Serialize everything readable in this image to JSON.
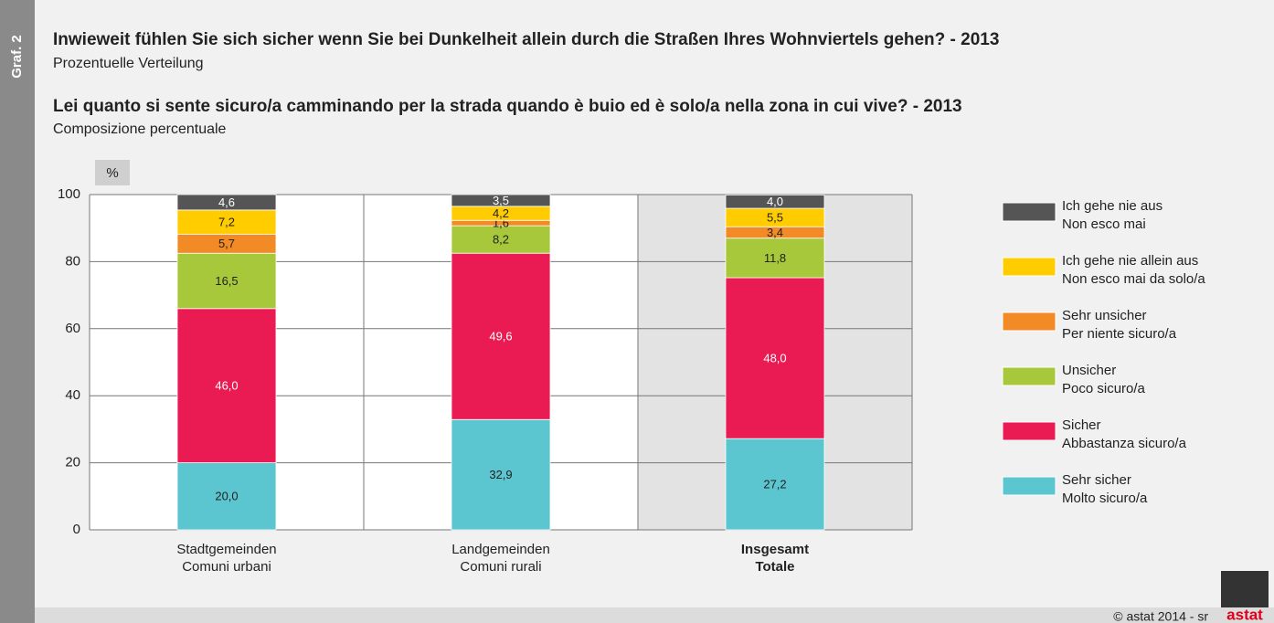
{
  "side_label": "Graf. 2",
  "chart_data": {
    "type": "stacked_bar",
    "title": "Inwieweit fühlen Sie sich sicher wenn Sie bei Dunkelheit allein durch die Straßen Ihres Wohnviertels gehen? - 2013",
    "subtitle": "Prozentuelle Verteilung",
    "title_it": "Lei quanto si sente sicuro/a camminando per la strada quando è buio ed è solo/a nella zona in cui vive? - 2013",
    "subtitle_it": "Composizione percentuale",
    "y_unit": "%",
    "categories": [
      [
        "Stadtgemeinden",
        "Comuni urbani"
      ],
      [
        "Landgemeinden",
        "Comuni rurali"
      ],
      [
        "Insgesamt",
        "Totale"
      ]
    ],
    "highlight_category": 2,
    "ylim": [
      0,
      100
    ],
    "yticks": [
      0,
      20,
      40,
      60,
      80,
      100
    ],
    "grid": true,
    "series": [
      {
        "name": [
          "Sehr sicher",
          "Molto sicuro/a"
        ],
        "color": "#5bc6d0",
        "label_color": "#222",
        "values": [
          20.0,
          32.9,
          27.2
        ],
        "value_labels": [
          "20,0",
          "32,9",
          "27,2"
        ]
      },
      {
        "name": [
          "Sicher",
          "Abbastanza sicuro/a"
        ],
        "color": "#ea1a52",
        "label_color": "#fff",
        "values": [
          46.0,
          49.6,
          48.0
        ],
        "value_labels": [
          "46,0",
          "49,6",
          "48,0"
        ]
      },
      {
        "name": [
          "Unsicher",
          "Poco sicuro/a"
        ],
        "color": "#a7c83a",
        "label_color": "#222",
        "values": [
          16.5,
          8.2,
          11.8
        ],
        "value_labels": [
          "16,5",
          "8,2",
          "11,8"
        ]
      },
      {
        "name": [
          "Sehr unsicher",
          "Per niente sicuro/a"
        ],
        "color": "#f28a26",
        "label_color": "#222",
        "values": [
          5.7,
          1.6,
          3.4
        ],
        "value_labels": [
          "5,7",
          "1,6",
          "3,4"
        ]
      },
      {
        "name": [
          "Ich gehe nie allein aus",
          "Non esco mai da solo/a"
        ],
        "color": "#ffcc00",
        "label_color": "#222",
        "values": [
          7.2,
          4.2,
          5.5
        ],
        "value_labels": [
          "7,2",
          "4,2",
          "5,5"
        ]
      },
      {
        "name": [
          "Ich gehe nie aus",
          "Non esco mai"
        ],
        "color": "#555555",
        "label_color": "#fff",
        "values": [
          4.6,
          3.5,
          4.0
        ],
        "value_labels": [
          "4,6",
          "3,5",
          "4,0"
        ]
      }
    ]
  },
  "footer": "© astat 2014 - sr",
  "logo": "astat"
}
